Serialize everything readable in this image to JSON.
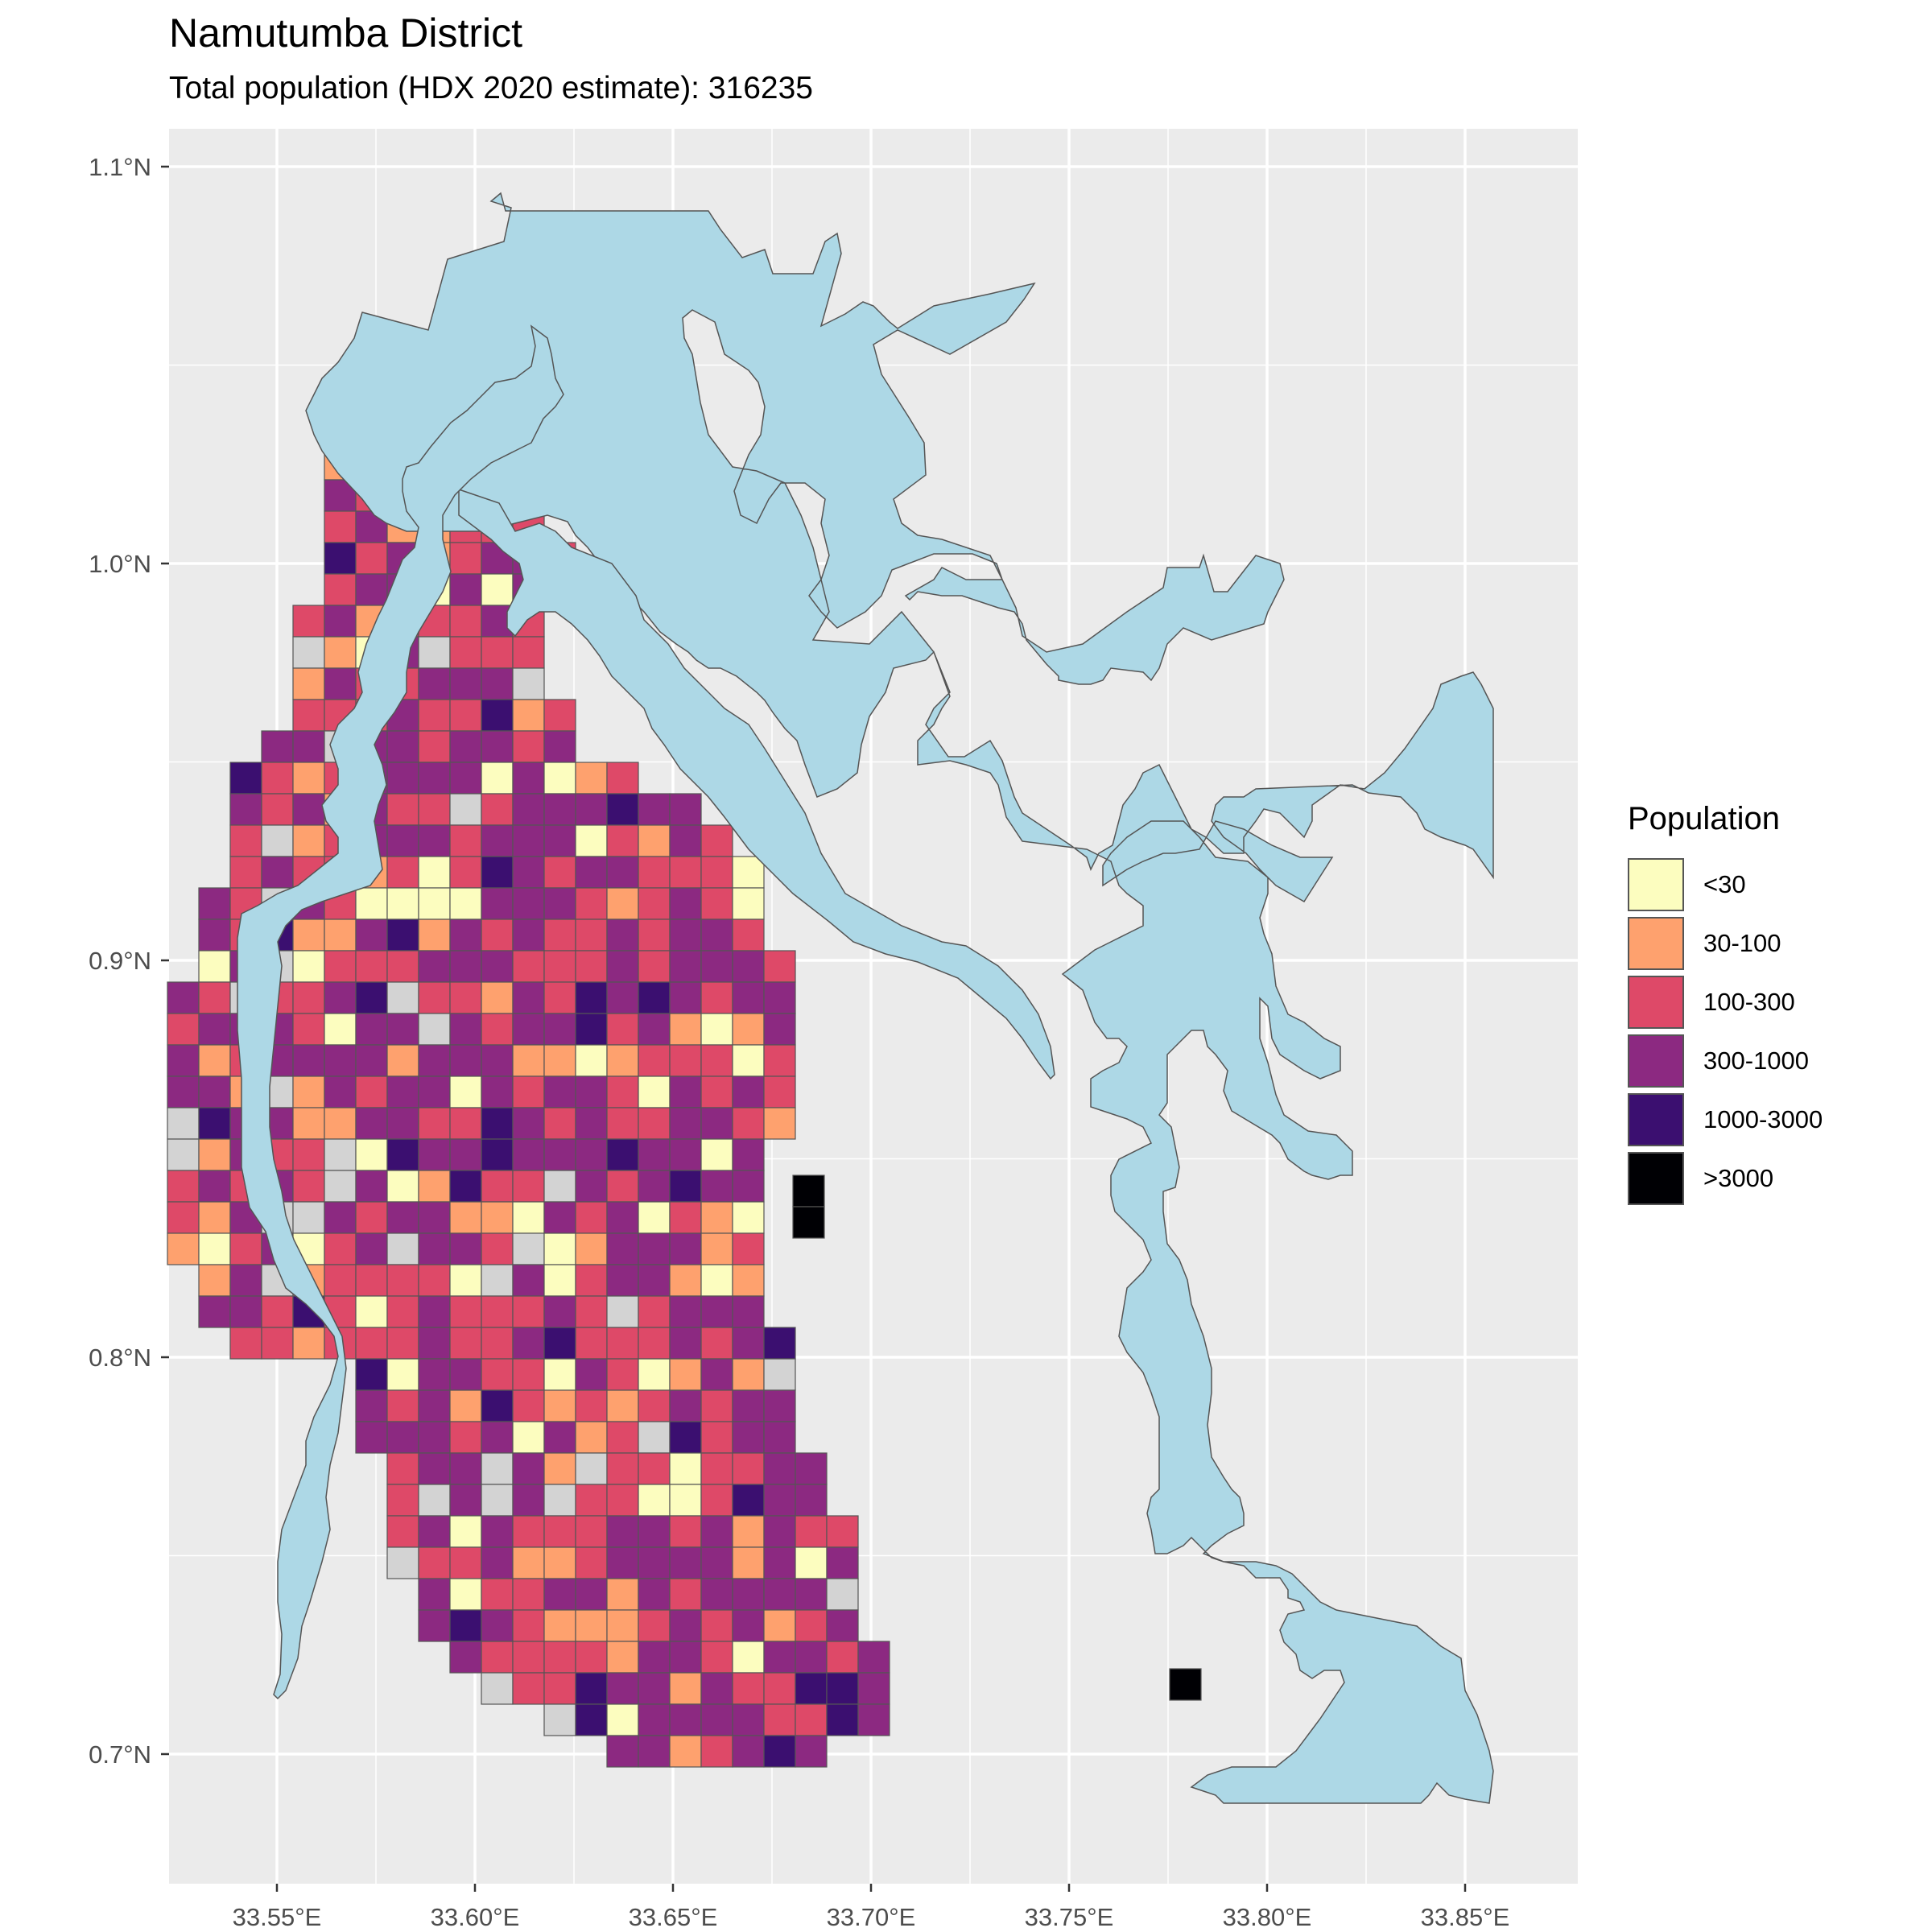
{
  "title": "Namutumba District",
  "subtitle": "Total population (HDX 2020 estimate): 316235",
  "x_ticks": [
    "33.55°E",
    "33.60°E",
    "33.65°E",
    "33.70°E",
    "33.75°E",
    "33.80°E",
    "33.85°E"
  ],
  "y_ticks": [
    "1.1°N",
    "1.0°N",
    "0.9°N",
    "0.8°N",
    "0.7°N"
  ],
  "legend": {
    "title": "Population",
    "items": [
      {
        "label": "<30",
        "color": "#FCFDBF"
      },
      {
        "label": "30-100",
        "color": "#FEA16E"
      },
      {
        "label": "100-300",
        "color": "#DE4968"
      },
      {
        "label": "300-1000",
        "color": "#8C2981"
      },
      {
        "label": "1000-3000",
        "color": "#3B0F70"
      },
      {
        "label": ">3000",
        "color": "#000004"
      }
    ]
  },
  "colors": {
    "panel": "#EBEBEB",
    "gridline": "#FFFFFF",
    "water": "#ADD8E6",
    "no_data": "#D3D3D3",
    "cell_border": "#555555"
  }
}
